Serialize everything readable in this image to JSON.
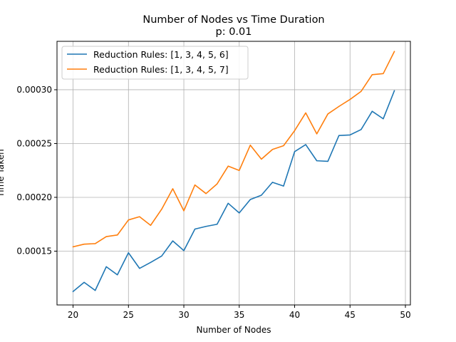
{
  "chart_data": {
    "type": "line",
    "title": "Number of Nodes vs Time Duration",
    "subtitle": "p: 0.01",
    "xlabel": "Number of Nodes",
    "ylabel": "Time Taken",
    "xlim": [
      18.55,
      50.45
    ],
    "ylim": [
      0.0001,
      0.000345
    ],
    "xticks": [
      20,
      25,
      30,
      35,
      40,
      45,
      50
    ],
    "yticks": [
      0.00015,
      0.0002,
      0.00025,
      0.0003
    ],
    "ytick_labels": [
      "0.00015",
      "0.00020",
      "0.00025",
      "0.00030"
    ],
    "grid": true,
    "legend_position": "top-left",
    "x": [
      20,
      21,
      22,
      23,
      24,
      25,
      26,
      27,
      28,
      29,
      30,
      31,
      32,
      33,
      34,
      35,
      36,
      37,
      38,
      39,
      40,
      41,
      42,
      43,
      44,
      45,
      46,
      47,
      48,
      49
    ],
    "series": [
      {
        "name": "Reduction Rules: [1, 3, 4, 5, 6]",
        "color": "#1f77b4",
        "values": [
          0.0001125,
          0.000121,
          0.0001135,
          0.0001355,
          0.000128,
          0.0001485,
          0.000134,
          0.0001395,
          0.0001455,
          0.0001595,
          0.0001505,
          0.0001705,
          0.000173,
          0.000175,
          0.0001945,
          0.0001855,
          0.000198,
          0.000202,
          0.000214,
          0.0002105,
          0.0002425,
          0.000249,
          0.000234,
          0.0002335,
          0.0002575,
          0.000258,
          0.000263,
          0.00028,
          0.000273,
          0.000299
        ]
      },
      {
        "name": "Reduction Rules: [1, 3, 4, 5, 7]",
        "color": "#ff7f0e",
        "values": [
          0.000154,
          0.0001565,
          0.000157,
          0.0001635,
          0.000165,
          0.000179,
          0.000182,
          0.000174,
          0.000189,
          0.000208,
          0.0001875,
          0.0002115,
          0.0002035,
          0.0002125,
          0.000229,
          0.000225,
          0.0002485,
          0.0002355,
          0.0002445,
          0.000248,
          0.000262,
          0.0002785,
          0.000259,
          0.0002775,
          0.0002845,
          0.000291,
          0.0002985,
          0.000314,
          0.000315,
          0.0003355
        ]
      }
    ]
  }
}
